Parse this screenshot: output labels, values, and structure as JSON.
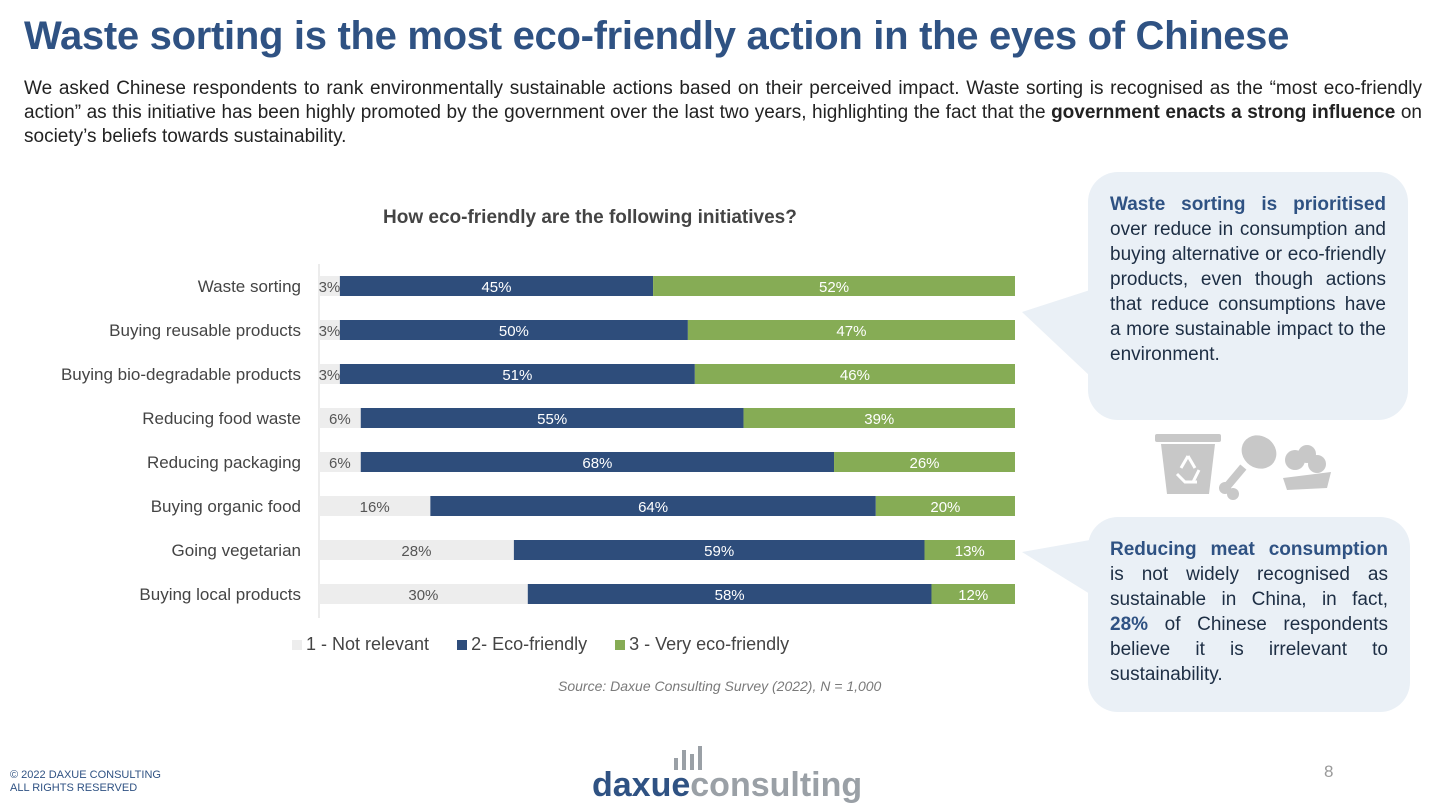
{
  "header": {
    "title": "Waste sorting is the most eco-friendly action in the eyes of Chinese",
    "intro_part1": "We asked Chinese respondents to rank environmentally sustainable actions based on their perceived impact. Waste sorting is recognised as the “most eco-friendly action” as this initiative has been highly promoted by the government over the last two years, highlighting the fact that the ",
    "intro_bold": "government enacts a strong influence",
    "intro_part2": " on society’s beliefs towards sustainability."
  },
  "chart_data": {
    "type": "bar",
    "orientation": "horizontal-stacked-100",
    "title": "How eco-friendly are the following initiatives?",
    "categories": [
      "Waste sorting",
      "Buying reusable products",
      "Buying bio-degradable products",
      "Reducing food waste",
      "Reducing packaging",
      "Buying organic food",
      "Going vegetarian",
      "Buying local products"
    ],
    "series": [
      {
        "name": "1 - Not relevant",
        "color": "#ededed",
        "label_color": "#555555",
        "values": [
          3,
          3,
          3,
          6,
          6,
          16,
          28,
          30
        ]
      },
      {
        "name": "2- Eco-friendly",
        "color": "#2e4d7b",
        "label_color": "#ffffff",
        "values": [
          45,
          50,
          51,
          55,
          68,
          64,
          59,
          58
        ]
      },
      {
        "name": "3 - Very eco-friendly",
        "color": "#86ac55",
        "label_color": "#ffffff",
        "values": [
          52,
          47,
          46,
          39,
          26,
          20,
          13,
          12
        ]
      }
    ],
    "value_suffix": "%",
    "xlim": [
      0,
      100
    ],
    "legend_position": "bottom",
    "source": "Source: Daxue Consulting Survey (2022), N = 1,000"
  },
  "callouts": {
    "first_bold": "Waste sorting is prioritised",
    "first_text": " over reduce in consumption and buying alternative or eco-friendly products, even though actions that reduce consumptions have a more sustainable impact to the environment.",
    "second_bold": "Reducing meat consumption",
    "second_text_a": " is not widely recognised as sustainable in China, in fact, ",
    "second_highlight": "28%",
    "second_text_b": " of Chinese respondents believe it is irrelevant to sustainability."
  },
  "icons": [
    "recycle-bin-icon",
    "chicken-leg-icon",
    "vegetables-icon"
  ],
  "footer": {
    "copyright_line1": "© 2022 DAXUE CONSULTING",
    "copyright_line2": "ALL RIGHTS RESERVED",
    "logo_text_a": "daxue",
    "logo_text_b": "consulting",
    "page_number": "8"
  },
  "colors": {
    "brand_blue": "#2f5283",
    "callout_bg": "#eaf0f6",
    "green": "#86ac55",
    "navy": "#2e4d7b"
  }
}
